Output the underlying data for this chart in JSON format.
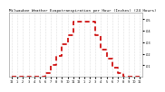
{
  "hours": [
    0,
    1,
    2,
    3,
    4,
    5,
    6,
    7,
    8,
    9,
    10,
    11,
    12,
    13,
    14,
    15,
    16,
    17,
    18,
    19,
    20,
    21,
    22,
    23
  ],
  "values": [
    0.0,
    0.0,
    0.0,
    0.0,
    0.0,
    0.0,
    0.003,
    0.01,
    0.018,
    0.028,
    0.036,
    0.048,
    0.048,
    0.048,
    0.048,
    0.036,
    0.024,
    0.016,
    0.008,
    0.003,
    0.0,
    0.0,
    0.0,
    0.0
  ],
  "line_color": "#cc0000",
  "line_width": 1.2,
  "title": "Milwaukee Weather Evapotranspiration per Hour (Inches) (24 Hours)",
  "title_fontsize": 3.0,
  "ylim": [
    0.0,
    0.056
  ],
  "xlim": [
    -0.5,
    23.5
  ],
  "ytick_values": [
    0.01,
    0.02,
    0.03,
    0.04,
    0.05
  ],
  "ytick_labels": [
    ".01",
    ".02",
    ".03",
    ".04",
    ".05"
  ],
  "xtick_positions": [
    0,
    1,
    2,
    3,
    4,
    5,
    6,
    7,
    8,
    9,
    10,
    11,
    12,
    13,
    14,
    15,
    16,
    17,
    18,
    19,
    20,
    21,
    22,
    23
  ],
  "xtick_labels": [
    "12",
    "1",
    "2",
    "3",
    "4",
    "5",
    "6",
    "7",
    "8",
    "9",
    "10",
    "11",
    "12",
    "1",
    "2",
    "3",
    "4",
    "5",
    "6",
    "7",
    "8",
    "9",
    "10",
    "11"
  ],
  "grid_color": "#bbbbbb",
  "background_color": "#ffffff",
  "tick_fontsize": 2.5,
  "title_color": "#000000"
}
